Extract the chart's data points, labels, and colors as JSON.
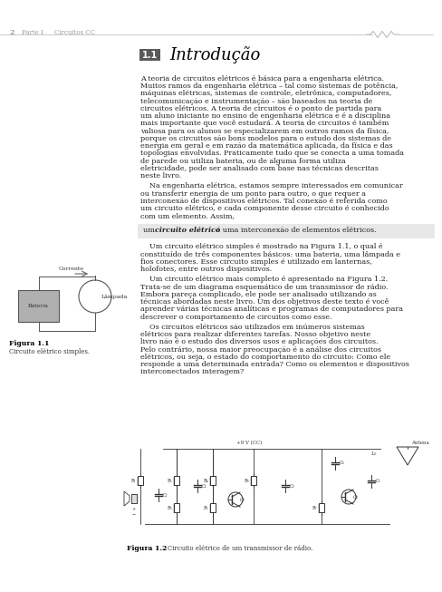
{
  "page_bg": "#f5f5f0",
  "content_bg": "#ffffff",
  "header_line_color": "#aaaaaa",
  "header_text_color": "#888888",
  "header_page_num": "2",
  "header_part": "Parte I",
  "header_chapter": "Circuitos CC",
  "resistor_symbol_color": "#aaaaaa",
  "section_box_color": "#6b6b6b",
  "section_num": "1.1",
  "section_title": "Introdução",
  "body_text_color": "#222222",
  "body_text_size": 5.8,
  "highlight_box_color": "#e8e8e8",
  "highlight_text": "um circuito elétrico é uma interconexão de elementos elétricos.",
  "fig1_caption_bold": "Figura 1.1",
  "fig1_caption": "Circuito elétrico simples.",
  "fig2_caption_bold": "Figura 1.2",
  "fig2_caption": "Circuito elétrico de um transmissor de rádio.",
  "paragraph1": "A teoria de circuitos elétricos é básica para a engenharia elétrica. Muitos ramos da engenharia elétrica – tal como sistemas de potência, máquinas elétricas, sistemas de controle, eletrônica, computadores, telecomunicação e instrumentação – são baseados na teoria de circuitos elétricos. A teoria de circuitos é o ponto de partida para um aluno iniciante no ensino de engenharia elétrica e é a disciplina mais importante que você estudará. A teoria de circuitos é também valiosa para os alunos se especializarem em outros ramos da física, porque os circuitos são bons modelos para o estudo dos sistemas de energia em geral e em razão da matemática aplicada, da física e das topologias envolvidas. Praticamente tudo que se conecta a uma tomada de parede ou utiliza bateria, ou de alguma forma utiliza eletricidade, pode ser analisado com base nas técnicas descritas neste livro.",
  "paragraph2": "    Na engenharia elétrica, estamos sempre interessados em comunicar ou transferir energia de um ponto para outro, o que requer a interconexão de dispositivos elétricos. Tal conexão é referida como um circuito elétrico, e cada componente desse circuito é conhecido com um elemento. Assim,",
  "paragraph3": "    Um circuito elétrico simples é mostrado na Figura 1.1, o qual é constituído de três componentes básicos: uma bateria, uma lâmpada e fios conectores. Esse circuito simples é utilizado em lanternas, holofotes, entre outros dispositivos.",
  "paragraph4": "    Um circuito elétrico mais completo é apresentado na Figura 1.2. Trata-se de um diagrama esquemático de um transmissor de rádio. Embora pareça complicado, ele pode ser analisado utilizando as técnicas abordadas neste livro. Um dos objetivos deste texto é você aprender várias técnicas analíticas e programas de computadores para descrever o comportamento de circuitos como esse.",
  "paragraph5": "    Os circuitos elétricos são utilizados em inúmeros sistemas elétricos para realizar diferentes tarefas. Nosso objetivo neste livro não é o estudo dos diversos usos e aplicações dos circuitos. Pelo contrário, nossa maior preocupação é a análise dos circuitos elétricos, ou seja, o estado do comportamento do circuito: Como ele responde a uma determinada entrada? Como os elementos e dispositivos interconectados interagem?"
}
